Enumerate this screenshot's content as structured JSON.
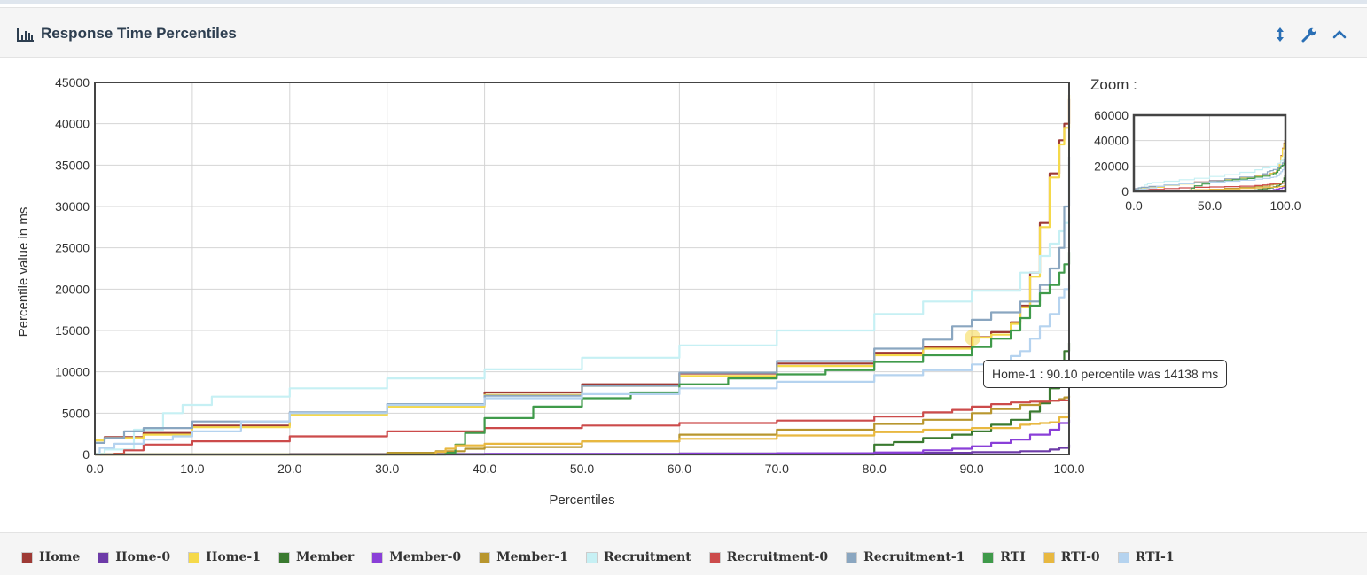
{
  "panel": {
    "title": "Response Time Percentiles",
    "icons": [
      "bar-chart-icon",
      "resize-vertical-icon",
      "wrench-icon",
      "chevron-up-icon"
    ]
  },
  "zoom": {
    "label": "Zoom :"
  },
  "tooltip": {
    "text": "Home-1 : 90.10 percentile was 14138 ms"
  },
  "chart_data": {
    "type": "line",
    "title": "",
    "xlabel": "Percentiles",
    "ylabel": "Percentile value in ms",
    "xlim": [
      0,
      100
    ],
    "ylim": [
      0,
      45000
    ],
    "xticks": [
      "0.0",
      "10.0",
      "20.0",
      "30.0",
      "40.0",
      "50.0",
      "60.0",
      "70.0",
      "80.0",
      "90.0",
      "100.0"
    ],
    "yticks": [
      "0",
      "5000",
      "10000",
      "15000",
      "20000",
      "25000",
      "30000",
      "35000",
      "40000",
      "45000"
    ],
    "grid": true,
    "legend_position": "bottom",
    "highlight": {
      "series": "Home-1",
      "x": 90.1,
      "y": 14138
    },
    "zoom_overview": {
      "ylim": [
        0,
        60000
      ],
      "yticks": [
        "0",
        "20000",
        "40000",
        "60000"
      ],
      "xticks": [
        "0.0",
        "50.0",
        "100.0"
      ]
    },
    "series": [
      {
        "name": "Home",
        "color": "#9e3a35",
        "x": [
          0,
          1,
          5,
          10,
          20,
          30,
          40,
          50,
          60,
          70,
          80,
          85,
          90,
          92,
          94,
          95,
          96,
          97,
          98,
          99,
          99.5,
          100
        ],
        "y": [
          1800,
          2100,
          2600,
          3500,
          5000,
          6000,
          7500,
          8500,
          9800,
          11000,
          12300,
          13000,
          14200,
          14800,
          16000,
          18000,
          22000,
          28000,
          34000,
          38000,
          40000,
          43000
        ]
      },
      {
        "name": "Home-0",
        "color": "#6d3ba8",
        "x": [
          0,
          20,
          40,
          60,
          80,
          90,
          95,
          98,
          99,
          100
        ],
        "y": [
          0,
          50,
          80,
          120,
          200,
          280,
          400,
          600,
          800,
          1200
        ]
      },
      {
        "name": "Home-1",
        "color": "#f5d94a",
        "x": [
          0,
          1,
          5,
          10,
          20,
          30,
          40,
          50,
          60,
          70,
          80,
          85,
          90.1,
          92,
          94,
          95,
          96,
          97,
          98,
          99,
          99.5,
          100
        ],
        "y": [
          1700,
          2000,
          2400,
          3300,
          4800,
          5800,
          7200,
          8300,
          9500,
          10700,
          12000,
          12800,
          14138,
          14500,
          15800,
          17800,
          21500,
          27500,
          33500,
          37500,
          39500,
          43500
        ]
      },
      {
        "name": "Member",
        "color": "#3a7a30",
        "x": [
          0,
          30,
          60,
          75,
          79,
          80,
          82,
          85,
          88,
          90,
          92,
          94,
          96,
          97,
          98,
          99,
          99.5,
          100
        ],
        "y": [
          0,
          0,
          0,
          0,
          0,
          1200,
          1500,
          2000,
          2400,
          2800,
          3600,
          4200,
          5200,
          6200,
          8000,
          10500,
          12500,
          13500
        ]
      },
      {
        "name": "Member-0",
        "color": "#8a3fd8",
        "x": [
          0,
          20,
          40,
          60,
          70,
          80,
          85,
          88,
          90,
          92,
          94,
          96,
          98,
          99,
          100
        ],
        "y": [
          0,
          0,
          50,
          100,
          150,
          250,
          500,
          700,
          1000,
          1400,
          1800,
          2400,
          3000,
          3800,
          4200
        ]
      },
      {
        "name": "Member-1",
        "color": "#b8962e",
        "x": [
          0,
          10,
          20,
          30,
          35,
          38,
          40,
          50,
          60,
          70,
          80,
          85,
          90,
          92,
          95,
          97,
          98,
          99,
          99.5,
          100
        ],
        "y": [
          0,
          0,
          0,
          200,
          400,
          700,
          900,
          1600,
          2400,
          3000,
          3700,
          4200,
          5000,
          5500,
          6000,
          6400,
          6500,
          6700,
          6900,
          7100
        ]
      },
      {
        "name": "Recruitment",
        "color": "#c6f0f4",
        "x": [
          0,
          1,
          4,
          7,
          9,
          12,
          20,
          30,
          40,
          50,
          60,
          70,
          80,
          85,
          90,
          95,
          97,
          98,
          99,
          99.5,
          100
        ],
        "y": [
          100,
          600,
          3000,
          5000,
          6000,
          7000,
          8000,
          9200,
          10300,
          11700,
          13200,
          15000,
          17000,
          18500,
          19800,
          22000,
          24000,
          25500,
          27000,
          28000,
          29000
        ]
      },
      {
        "name": "Recruitment-0",
        "color": "#cc4b4b",
        "x": [
          0,
          2,
          3,
          5,
          10,
          20,
          30,
          40,
          50,
          60,
          70,
          80,
          85,
          88,
          90,
          92,
          94,
          96,
          98,
          99,
          100
        ],
        "y": [
          0,
          100,
          500,
          1200,
          1600,
          2200,
          2800,
          3200,
          3500,
          3800,
          4100,
          4600,
          5100,
          5400,
          5800,
          6100,
          6300,
          6400,
          6500,
          6550,
          6600
        ]
      },
      {
        "name": "Recruitment-1",
        "color": "#8aa6c0",
        "x": [
          0,
          1,
          3,
          5,
          10,
          20,
          30,
          40,
          50,
          60,
          70,
          80,
          85,
          88,
          90,
          92,
          95,
          97,
          98,
          99,
          99.5,
          100
        ],
        "y": [
          1400,
          2000,
          2800,
          3200,
          4000,
          5100,
          6100,
          7100,
          8300,
          9900,
          11300,
          12800,
          13900,
          15500,
          16300,
          17200,
          18500,
          20500,
          22500,
          25000,
          30000,
          36000
        ]
      },
      {
        "name": "RTI",
        "color": "#3f9a4a",
        "x": [
          0,
          30,
          36,
          37,
          38,
          40,
          45,
          50,
          55,
          60,
          65,
          70,
          75,
          80,
          85,
          90,
          92,
          94,
          95,
          96,
          97,
          98,
          99,
          99.5,
          100
        ],
        "y": [
          0,
          0,
          200,
          1200,
          2600,
          4400,
          5800,
          6800,
          7500,
          8500,
          9200,
          9700,
          10200,
          11200,
          12000,
          13000,
          14000,
          15000,
          16500,
          18000,
          19500,
          20500,
          22000,
          23000,
          24500
        ]
      },
      {
        "name": "RTI-0",
        "color": "#e8b840",
        "x": [
          0,
          10,
          20,
          30,
          35,
          36,
          37,
          40,
          50,
          60,
          70,
          80,
          85,
          90,
          95,
          96,
          97,
          98,
          99,
          100
        ],
        "y": [
          0,
          0,
          0,
          0,
          300,
          700,
          1100,
          1300,
          1600,
          1900,
          2300,
          2700,
          3000,
          3200,
          3600,
          3700,
          3800,
          3900,
          4500,
          6500
        ]
      },
      {
        "name": "RTI-1",
        "color": "#b5d3ef",
        "x": [
          0,
          0.5,
          2,
          5,
          8,
          10,
          15,
          20,
          30,
          40,
          50,
          60,
          70,
          80,
          85,
          90,
          92,
          94,
          95,
          96,
          97,
          98,
          99,
          99.5,
          100
        ],
        "y": [
          0,
          800,
          1300,
          1800,
          2200,
          2800,
          4000,
          5000,
          6000,
          6800,
          7300,
          8000,
          8800,
          9600,
          10200,
          10900,
          11300,
          11900,
          12500,
          14000,
          15500,
          17000,
          19000,
          20000,
          20500
        ]
      }
    ]
  }
}
